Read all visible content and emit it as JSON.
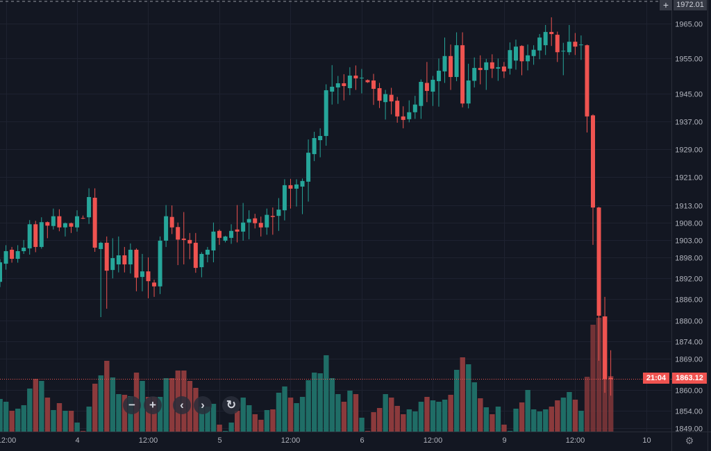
{
  "chart_data": {
    "type": "candlestick",
    "title": "",
    "interval": "1 hour",
    "ylim": [
      1849,
      1965
    ],
    "grid": true,
    "colors": {
      "up": "#26a69a",
      "down": "#ef5350",
      "volume_up": "#1f6d66",
      "volume_down": "#8b3a3c",
      "background": "#131722",
      "grid": "#1e2230",
      "text": "#b2b5be"
    },
    "price_ticks": [
      "1965.00",
      "1955.00",
      "1945.00",
      "1937.00",
      "1929.00",
      "1921.00",
      "1913.00",
      "1908.00",
      "1903.00",
      "1898.00",
      "1892.00",
      "1886.00",
      "1880.00",
      "1874.00",
      "1869.00",
      "1860.00",
      "1854.00",
      "1849.00"
    ],
    "time_ticks": [
      {
        "label": "12:00",
        "index": 1
      },
      {
        "label": "4",
        "index": 13
      },
      {
        "label": "12:00",
        "index": 25
      },
      {
        "label": "5",
        "index": 37
      },
      {
        "label": "12:00",
        "index": 49
      },
      {
        "label": "6",
        "index": 61
      },
      {
        "label": "12:00",
        "index": 73
      },
      {
        "label": "9",
        "index": 85
      },
      {
        "label": "12:00",
        "index": 97
      },
      {
        "label": "10",
        "index": 109
      }
    ],
    "ohlc": [
      [
        1891,
        1897.5,
        1889.5,
        1896.6
      ],
      [
        1896.2,
        1901.5,
        1894.5,
        1899.8
      ],
      [
        1900.2,
        1901,
        1896.5,
        1897.6
      ],
      [
        1897.6,
        1901.5,
        1896.5,
        1899.8
      ],
      [
        1899.8,
        1903,
        1899,
        1900.8
      ],
      [
        1900.6,
        1908.7,
        1898.8,
        1907.5
      ],
      [
        1907.5,
        1908.5,
        1899.5,
        1901
      ],
      [
        1901,
        1909.5,
        1900.5,
        1908.1
      ],
      [
        1908.1,
        1908.3,
        1903.5,
        1907.1
      ],
      [
        1907,
        1912,
        1906,
        1909.8
      ],
      [
        1909.8,
        1911.8,
        1905.5,
        1906.6
      ],
      [
        1906.6,
        1908,
        1904,
        1907.8
      ],
      [
        1907.8,
        1908,
        1905,
        1906.8
      ],
      [
        1906.6,
        1911.5,
        1905.4,
        1909.8
      ],
      [
        1909.3,
        1910,
        1909,
        1909.1
      ],
      [
        1909.5,
        1917.8,
        1907.6,
        1915.3
      ],
      [
        1915.1,
        1917.8,
        1899.6,
        1900.8
      ],
      [
        1900.4,
        1902.5,
        1880.9,
        1902.2
      ],
      [
        1902.2,
        1904,
        1883.3,
        1894.2
      ],
      [
        1894.4,
        1903.5,
        1892,
        1897.8
      ],
      [
        1896,
        1904,
        1893.7,
        1898.6
      ],
      [
        1898.6,
        1901,
        1893.7,
        1896
      ],
      [
        1896,
        1902,
        1893.4,
        1900.2
      ],
      [
        1900.2,
        1900.6,
        1888.3,
        1892.2
      ],
      [
        1892.4,
        1899,
        1888.3,
        1894
      ],
      [
        1894,
        1898,
        1886.3,
        1891.2
      ],
      [
        1890.8,
        1891.6,
        1886.7,
        1889.7
      ],
      [
        1889.7,
        1904,
        1887.5,
        1902.8
      ],
      [
        1902.8,
        1913,
        1901,
        1909.8
      ],
      [
        1909.6,
        1912.9,
        1904.7,
        1906.6
      ],
      [
        1906.7,
        1908,
        1895.8,
        1903.1
      ],
      [
        1903.4,
        1911,
        1896,
        1903
      ],
      [
        1903,
        1905,
        1897.5,
        1902
      ],
      [
        1902.2,
        1905,
        1893.6,
        1895
      ],
      [
        1895.2,
        1899.5,
        1892.3,
        1899
      ],
      [
        1898.8,
        1901,
        1896.6,
        1900.2
      ],
      [
        1900,
        1908,
        1896.6,
        1905.4
      ],
      [
        1905.6,
        1906,
        1901.6,
        1903.6
      ],
      [
        1902.8,
        1904.2,
        1902.3,
        1904
      ],
      [
        1903.6,
        1907.5,
        1901.9,
        1905.6
      ],
      [
        1906,
        1913,
        1902.3,
        1905.4
      ],
      [
        1905.4,
        1913.6,
        1902.8,
        1908
      ],
      [
        1908,
        1911.5,
        1903.2,
        1909
      ],
      [
        1909.2,
        1910.5,
        1906.3,
        1907.8
      ],
      [
        1907.9,
        1909.7,
        1904,
        1906.6
      ],
      [
        1906.6,
        1912,
        1904.5,
        1910.2
      ],
      [
        1909.9,
        1912.3,
        1904.5,
        1909.6
      ],
      [
        1909.9,
        1915,
        1905.6,
        1911.7
      ],
      [
        1911.5,
        1920.4,
        1908.6,
        1918.7
      ],
      [
        1918.7,
        1920.5,
        1912,
        1917.7
      ],
      [
        1917.7,
        1920.4,
        1912.6,
        1918.9
      ],
      [
        1918.3,
        1920.6,
        1910.4,
        1919.9
      ],
      [
        1919.7,
        1931.8,
        1914,
        1928
      ],
      [
        1927.6,
        1934,
        1925.6,
        1932.2
      ],
      [
        1931.6,
        1935,
        1926.7,
        1932.8
      ],
      [
        1932.8,
        1947.6,
        1930,
        1945.9
      ],
      [
        1945.5,
        1953.1,
        1941.8,
        1946.9
      ],
      [
        1946.7,
        1950,
        1942,
        1947.9
      ],
      [
        1947.9,
        1950.5,
        1943,
        1947.1
      ],
      [
        1946.5,
        1952.5,
        1944.5,
        1950.1
      ],
      [
        1950.1,
        1953,
        1946,
        1949.3
      ],
      [
        1949.3,
        1952,
        1945,
        1949.5
      ],
      [
        1948.8,
        1949,
        1948,
        1948.2
      ],
      [
        1948.7,
        1950.6,
        1941.7,
        1946.3
      ],
      [
        1946.5,
        1948,
        1940.8,
        1942.9
      ],
      [
        1942.5,
        1946,
        1937.5,
        1944.8
      ],
      [
        1944.6,
        1946.6,
        1939,
        1942.7
      ],
      [
        1942.9,
        1944,
        1936.6,
        1938.4
      ],
      [
        1938.4,
        1941.3,
        1935,
        1937.4
      ],
      [
        1937.6,
        1943,
        1936.7,
        1939.6
      ],
      [
        1939.6,
        1944.3,
        1937.7,
        1941.8
      ],
      [
        1941.4,
        1949,
        1937.7,
        1948.3
      ],
      [
        1948,
        1954,
        1942.5,
        1945.7
      ],
      [
        1945.5,
        1950,
        1941.4,
        1948.9
      ],
      [
        1948.5,
        1955,
        1941.2,
        1951.5
      ],
      [
        1951.3,
        1961,
        1948,
        1955.7
      ],
      [
        1955.7,
        1959,
        1946,
        1949.7
      ],
      [
        1949.7,
        1962.5,
        1948.5,
        1958.8
      ],
      [
        1958.8,
        1962.5,
        1941,
        1942.1
      ],
      [
        1942.1,
        1953.5,
        1940.7,
        1948.7
      ],
      [
        1948.6,
        1955.3,
        1946.7,
        1952.3
      ],
      [
        1952.3,
        1955.9,
        1947.6,
        1951.7
      ],
      [
        1951.7,
        1954.9,
        1946,
        1953.9
      ],
      [
        1953.9,
        1956.2,
        1949.4,
        1952.1
      ],
      [
        1952.1,
        1955,
        1948.6,
        1952.5
      ],
      [
        1952.7,
        1954,
        1949.4,
        1951.3
      ],
      [
        1952.1,
        1959.6,
        1950.4,
        1957.4
      ],
      [
        1954.4,
        1960.4,
        1951.8,
        1958.4
      ],
      [
        1958.6,
        1958.8,
        1950.2,
        1954.2
      ],
      [
        1954.2,
        1959,
        1951.6,
        1955.9
      ],
      [
        1955.7,
        1958.8,
        1953.2,
        1957.5
      ],
      [
        1957.3,
        1962,
        1954.8,
        1961
      ],
      [
        1958.8,
        1964.6,
        1956,
        1962.6
      ],
      [
        1962.6,
        1966.8,
        1958.6,
        1962
      ],
      [
        1961.8,
        1962.7,
        1954,
        1956.8
      ],
      [
        1957,
        1959.5,
        1950.2,
        1957.2
      ],
      [
        1956.8,
        1964.6,
        1956,
        1959.8
      ],
      [
        1959.8,
        1962.3,
        1956,
        1958.4
      ],
      [
        1958.8,
        1961.6,
        1954.6,
        1959
      ],
      [
        1958.8,
        1959,
        1933.8,
        1938.4
      ],
      [
        1938.7,
        1939,
        1901.6,
        1912.3
      ],
      [
        1912.3,
        1912.5,
        1868.4,
        1881.3
      ],
      [
        1881.1,
        1886.7,
        1859.2,
        1863.1
      ],
      [
        1863.5,
        1871.4,
        1858.4,
        1863.12
      ]
    ],
    "volume": [
      47,
      43,
      30,
      33,
      38,
      62,
      76,
      73,
      49,
      31,
      41,
      30,
      30,
      13,
      1,
      36,
      69,
      81,
      102,
      78,
      54,
      53,
      51,
      85,
      73,
      50,
      50,
      50,
      77,
      77,
      88,
      88,
      73,
      63,
      36,
      36,
      40,
      10,
      1,
      13,
      30,
      49,
      38,
      25,
      17,
      31,
      32,
      56,
      65,
      49,
      41,
      50,
      74,
      85,
      84,
      110,
      77,
      54,
      43,
      59,
      54,
      20,
      1,
      28,
      34,
      54,
      49,
      37,
      25,
      32,
      29,
      43,
      50,
      45,
      43,
      46,
      53,
      89,
      107,
      97,
      71,
      48,
      35,
      25,
      36,
      10,
      1,
      33,
      42,
      60,
      32,
      29,
      32,
      36,
      45,
      49,
      57,
      46,
      30,
      79,
      154,
      164,
      166,
      80
    ],
    "last_price": "1863.12",
    "countdown": "21:04",
    "crosshair_price": "1972.01"
  },
  "controls": {
    "zoom_out": "−",
    "zoom_in": "+",
    "scroll_left": "‹",
    "scroll_right": "›",
    "reset": "↻",
    "crosshair_plus": "+",
    "settings_icon": "gear-icon"
  }
}
